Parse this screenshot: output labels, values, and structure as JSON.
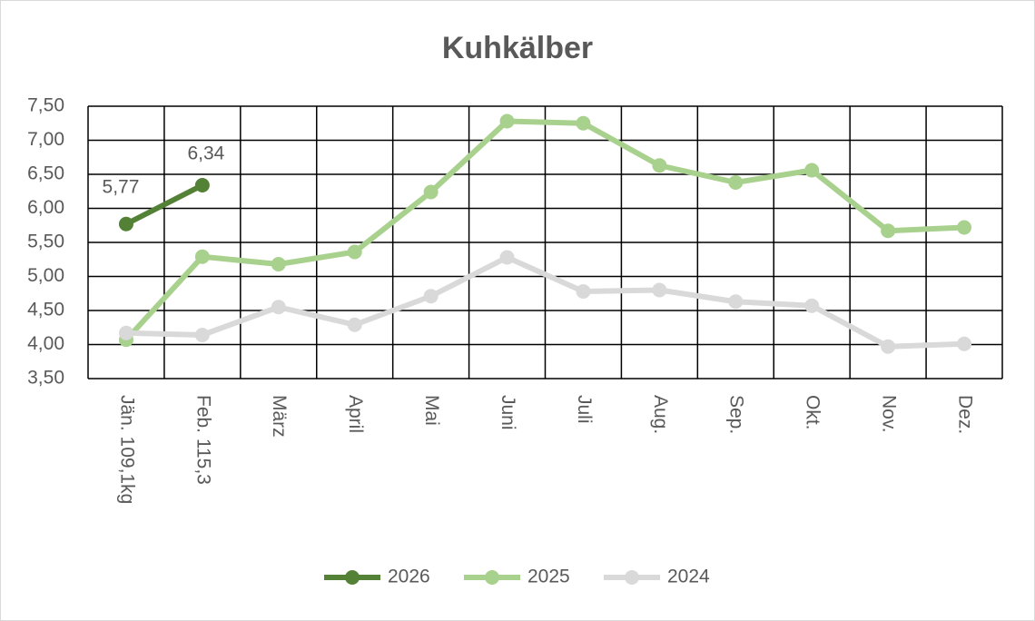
{
  "chart_data": {
    "type": "line",
    "title": "Kuhkälber",
    "categories": [
      "Jän. 109,1kg",
      "Feb. 115,3",
      "März",
      "April",
      "Mai",
      "Juni",
      "Juli",
      "Aug.",
      "Sep.",
      "Okt.",
      "Nov.",
      "Dez."
    ],
    "series": [
      {
        "name": "2026",
        "color": "#538135",
        "values": [
          5.77,
          6.34,
          null,
          null,
          null,
          null,
          null,
          null,
          null,
          null,
          null,
          null
        ],
        "value_labels": [
          "5,77",
          "6,34",
          null,
          null,
          null,
          null,
          null,
          null,
          null,
          null,
          null,
          null
        ]
      },
      {
        "name": "2025",
        "color": "#a9d18e",
        "values": [
          4.07,
          5.29,
          5.18,
          5.36,
          6.24,
          7.28,
          7.25,
          6.63,
          6.38,
          6.56,
          5.67,
          5.72
        ]
      },
      {
        "name": "2024",
        "color": "#d9d9d9",
        "values": [
          4.17,
          4.14,
          4.55,
          4.29,
          4.71,
          5.28,
          4.78,
          4.8,
          4.63,
          4.57,
          3.97,
          4.01
        ]
      }
    ],
    "ylim": [
      3.5,
      7.5
    ],
    "yticks": [
      {
        "value": 3.5,
        "label": "3,50"
      },
      {
        "value": 4,
        "label": "4,00"
      },
      {
        "value": 4.5,
        "label": "4,50"
      },
      {
        "value": 5,
        "label": "5,00"
      },
      {
        "value": 5.5,
        "label": "5,50"
      },
      {
        "value": 6,
        "label": "6,00"
      },
      {
        "value": 6.5,
        "label": "6,50"
      },
      {
        "value": 7,
        "label": "7,00"
      },
      {
        "value": 7.5,
        "label": "7,50"
      }
    ],
    "grid": true,
    "legend": "bottom"
  }
}
